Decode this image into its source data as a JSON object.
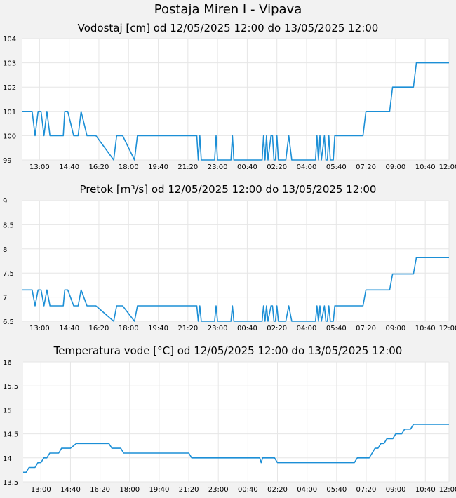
{
  "page": {
    "title": "Postaja Miren I - Vipava"
  },
  "colors": {
    "line": "#1c8fd6",
    "grid": "#e6e6e6",
    "plot_bg": "#ffffff",
    "page_bg": "#f2f2f2"
  },
  "x_labels": [
    "13:00",
    "14:40",
    "16:20",
    "18:00",
    "19:40",
    "21:20",
    "23:00",
    "00:40",
    "02:20",
    "04:00",
    "05:40",
    "07:20",
    "09:00",
    "10:40",
    "12:00"
  ],
  "chart_data": [
    {
      "type": "line",
      "title": "Vodostaj [cm] od 12/05/2025 12:00 do 13/05/2025 12:00",
      "xlabel": "",
      "ylabel": "",
      "x_start": "12/05/2025 12:00",
      "x_end": "13/05/2025 12:00",
      "ylim": [
        99,
        104
      ],
      "yticks": [
        "99",
        "100",
        "101",
        "102",
        "103",
        "104"
      ],
      "grid": true,
      "legend": "none",
      "series": [
        {
          "x": [
            "12:00",
            "12:35",
            "12:45",
            "12:55",
            "13:05",
            "13:15",
            "13:25",
            "13:35",
            "13:45",
            "14:20",
            "14:25",
            "14:35",
            "14:55",
            "15:00",
            "15:10",
            "15:20",
            "15:40",
            "15:50",
            "16:00",
            "16:10",
            "17:10",
            "17:20",
            "17:30",
            "17:40",
            "18:20",
            "18:30",
            "18:40",
            "18:50",
            "21:50",
            "21:55",
            "22:00",
            "22:05",
            "22:15",
            "22:50",
            "22:55",
            "23:00",
            "23:05",
            "23:10",
            "23:45",
            "23:50",
            "23:55",
            "24:00",
            "24:05",
            "25:30",
            "25:35",
            "25:40",
            "25:45",
            "25:50",
            "26:00",
            "26:05",
            "26:10",
            "26:15",
            "26:20",
            "26:25",
            "26:30",
            "26:35",
            "26:40",
            "26:50",
            "27:00",
            "27:10",
            "27:20",
            "27:25",
            "27:30",
            "28:30",
            "28:35",
            "28:40",
            "28:45",
            "28:50",
            "29:00",
            "29:05",
            "29:10",
            "29:15",
            "29:20",
            "29:25",
            "29:30",
            "29:35",
            "29:40",
            "29:45",
            "29:50",
            "31:10",
            "31:20",
            "32:40",
            "32:50",
            "34:00",
            "34:10",
            "35:40",
            "35:50",
            "36:00"
          ],
          "values": [
            101,
            101,
            100,
            101,
            101,
            100,
            101,
            100,
            100,
            100,
            101,
            101,
            100,
            100,
            100,
            101,
            100,
            100,
            100,
            100,
            99,
            100,
            100,
            100,
            99,
            100,
            100,
            100,
            100,
            99,
            100,
            99,
            99,
            99,
            100,
            99,
            99,
            99,
            99,
            100,
            99,
            99,
            99,
            99,
            100,
            99,
            100,
            99,
            100,
            100,
            99,
            99,
            100,
            99,
            99,
            99,
            99,
            99,
            100,
            99,
            99,
            99,
            99,
            99,
            100,
            99,
            100,
            99,
            100,
            99,
            99,
            100,
            99,
            99,
            99,
            100,
            100,
            100,
            100,
            100,
            101,
            101,
            102,
            102,
            103,
            103,
            103,
            103
          ]
        }
      ]
    },
    {
      "type": "line",
      "title": "Pretok [m³/s] od 12/05/2025 12:00 do 13/05/2025 12:00",
      "xlabel": "",
      "ylabel": "",
      "x_start": "12/05/2025 12:00",
      "x_end": "13/05/2025 12:00",
      "ylim": [
        6.5,
        9
      ],
      "yticks": [
        "6.5",
        "7",
        "7.5",
        "8",
        "8.5",
        "9"
      ],
      "grid": true,
      "legend": "none",
      "series": [
        {
          "x": [
            "12:00",
            "12:35",
            "12:45",
            "12:55",
            "13:05",
            "13:15",
            "13:25",
            "13:35",
            "13:45",
            "14:20",
            "14:25",
            "14:35",
            "14:55",
            "15:00",
            "15:10",
            "15:20",
            "15:40",
            "15:50",
            "16:00",
            "16:10",
            "17:10",
            "17:20",
            "17:30",
            "17:40",
            "18:20",
            "18:30",
            "18:40",
            "18:50",
            "21:50",
            "21:55",
            "22:00",
            "22:05",
            "22:15",
            "22:50",
            "22:55",
            "23:00",
            "23:05",
            "23:10",
            "23:45",
            "23:50",
            "23:55",
            "24:00",
            "24:05",
            "25:30",
            "25:35",
            "25:40",
            "25:45",
            "25:50",
            "26:00",
            "26:05",
            "26:10",
            "26:15",
            "26:20",
            "26:25",
            "26:30",
            "26:35",
            "26:40",
            "26:50",
            "27:00",
            "27:10",
            "27:20",
            "27:25",
            "27:30",
            "28:30",
            "28:35",
            "28:40",
            "28:45",
            "28:50",
            "29:00",
            "29:05",
            "29:10",
            "29:15",
            "29:20",
            "29:25",
            "29:30",
            "29:35",
            "29:40",
            "29:45",
            "29:50",
            "31:10",
            "31:20",
            "32:40",
            "32:50",
            "34:00",
            "34:10",
            "35:40",
            "35:50",
            "36:00"
          ],
          "values": [
            7.15,
            7.15,
            6.82,
            7.15,
            7.15,
            6.82,
            7.15,
            6.82,
            6.82,
            6.82,
            7.15,
            7.15,
            6.82,
            6.82,
            6.82,
            7.15,
            6.82,
            6.82,
            6.82,
            6.82,
            6.5,
            6.82,
            6.82,
            6.82,
            6.5,
            6.82,
            6.82,
            6.82,
            6.82,
            6.5,
            6.82,
            6.5,
            6.5,
            6.5,
            6.82,
            6.5,
            6.5,
            6.5,
            6.5,
            6.82,
            6.5,
            6.5,
            6.5,
            6.5,
            6.82,
            6.5,
            6.82,
            6.5,
            6.82,
            6.82,
            6.5,
            6.5,
            6.82,
            6.5,
            6.5,
            6.5,
            6.5,
            6.5,
            6.82,
            6.5,
            6.5,
            6.5,
            6.5,
            6.5,
            6.82,
            6.5,
            6.82,
            6.5,
            6.82,
            6.5,
            6.5,
            6.82,
            6.5,
            6.5,
            6.5,
            6.82,
            6.82,
            6.82,
            6.82,
            6.82,
            7.15,
            7.15,
            7.48,
            7.48,
            7.82,
            7.82,
            7.82,
            7.82
          ]
        }
      ]
    },
    {
      "type": "line",
      "title": "Temperatura vode [°C] od 12/05/2025 12:00 do 13/05/2025 12:00",
      "xlabel": "",
      "ylabel": "",
      "x_start": "12/05/2025 12:00",
      "x_end": "13/05/2025 12:00",
      "ylim": [
        13.5,
        16
      ],
      "yticks": [
        "13.5",
        "14",
        "14.5",
        "15",
        "15.5",
        "16"
      ],
      "grid": true,
      "legend": "none",
      "series": [
        {
          "x": [
            "12:00",
            "12:10",
            "12:20",
            "12:40",
            "12:50",
            "13:00",
            "13:10",
            "13:20",
            "13:30",
            "13:40",
            "14:00",
            "14:10",
            "14:30",
            "14:40",
            "15:00",
            "16:50",
            "17:00",
            "17:30",
            "17:40",
            "21:20",
            "21:30",
            "25:20",
            "25:25",
            "25:30",
            "26:10",
            "26:20",
            "30:40",
            "30:50",
            "31:30",
            "31:40",
            "31:50",
            "32:00",
            "32:10",
            "32:20",
            "32:30",
            "32:50",
            "33:00",
            "33:20",
            "33:30",
            "33:50",
            "34:00",
            "34:20",
            "34:30",
            "36:00"
          ],
          "values": [
            13.7,
            13.7,
            13.8,
            13.8,
            13.9,
            13.9,
            14.0,
            14.0,
            14.1,
            14.1,
            14.1,
            14.2,
            14.2,
            14.2,
            14.3,
            14.3,
            14.2,
            14.2,
            14.1,
            14.1,
            14.0,
            14.0,
            13.9,
            14.0,
            14.0,
            13.9,
            13.9,
            14.0,
            14.0,
            14.1,
            14.2,
            14.2,
            14.3,
            14.3,
            14.4,
            14.4,
            14.5,
            14.5,
            14.6,
            14.6,
            14.7,
            14.7,
            14.7,
            14.7
          ]
        }
      ]
    }
  ]
}
